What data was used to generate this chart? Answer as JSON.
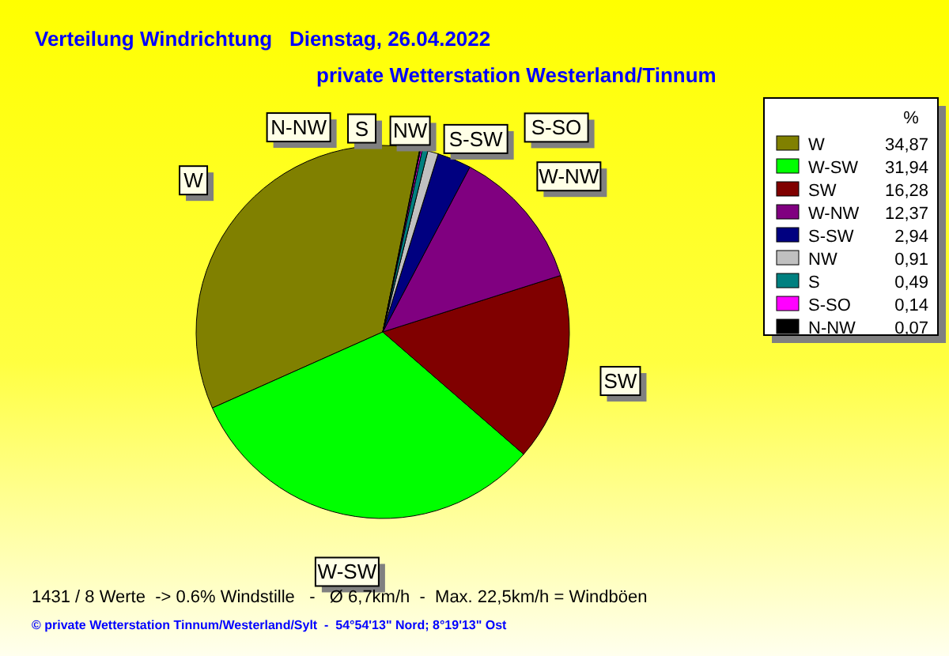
{
  "chart_data": {
    "type": "pie",
    "title": "Verteilung Windrichtung   Dienstag, 26.04.2022",
    "subtitle": "private Wetterstation Westerland/Tinnum",
    "legend_title": "%",
    "legend": "right",
    "categories": [
      "W",
      "W-SW",
      "SW",
      "W-NW",
      "S-SW",
      "NW",
      "S",
      "S-SO",
      "N-NW"
    ],
    "values": [
      34.87,
      31.94,
      16.28,
      12.37,
      2.94,
      0.91,
      0.49,
      0.14,
      0.07
    ],
    "value_labels": [
      "34,87",
      "31,94",
      "16,28",
      "12,37",
      "2,94",
      "0,91",
      "0,49",
      "0,14",
      "0,07"
    ],
    "colors": [
      "#808000",
      "#00ff00",
      "#800000",
      "#800080",
      "#000080",
      "#c0c0c0",
      "#008080",
      "#ff00ff",
      "#000000"
    ],
    "annotations": [
      "1431 / 8 Werte  -> 0.6% Windstille   -   Ø 6,7km/h  -  Max. 22,5km/h = Windböen",
      "© private Wetterstation Tinnum/Westerland/Sylt  -  54°54'13\" Nord; 8°19'13\" Ost"
    ]
  }
}
